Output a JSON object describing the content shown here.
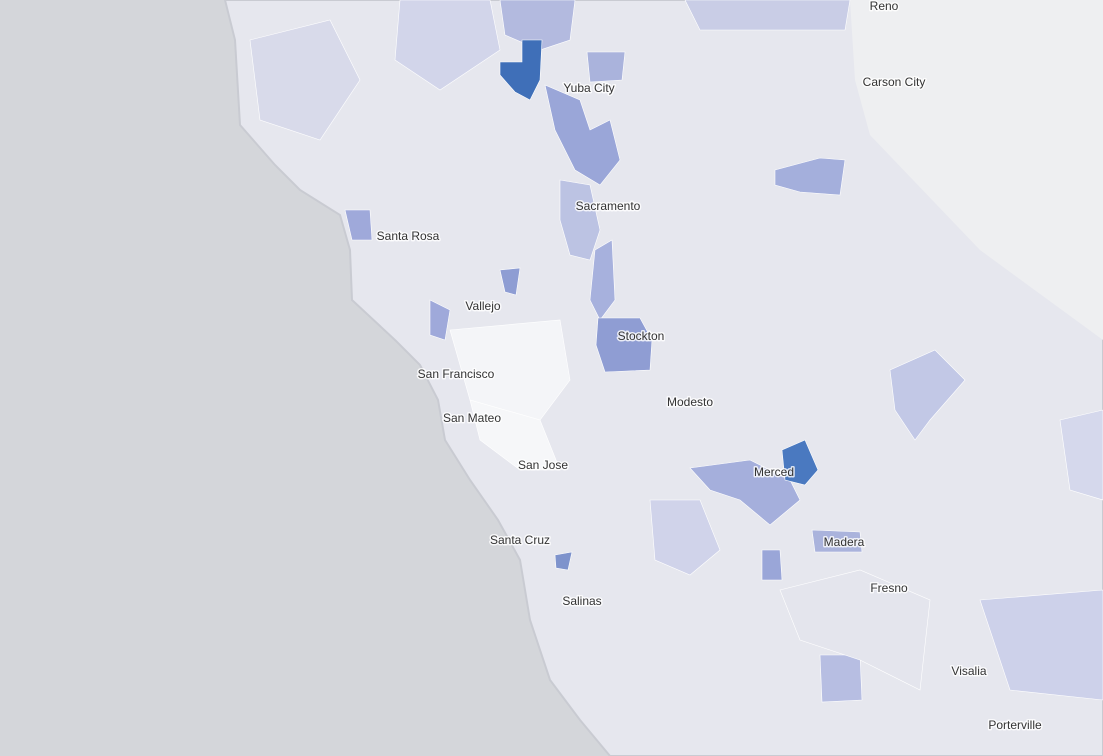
{
  "map": {
    "labels": [
      "Reno",
      "Carson City",
      "Yuba City",
      "Sacramento",
      "Santa Rosa",
      "Vallejo",
      "Stockton",
      "San Francisco",
      "Modesto",
      "San Mateo",
      "San Jose",
      "Merced",
      "Madera",
      "Santa Cruz",
      "Fresno",
      "Salinas",
      "Visalia",
      "Porterville"
    ]
  }
}
